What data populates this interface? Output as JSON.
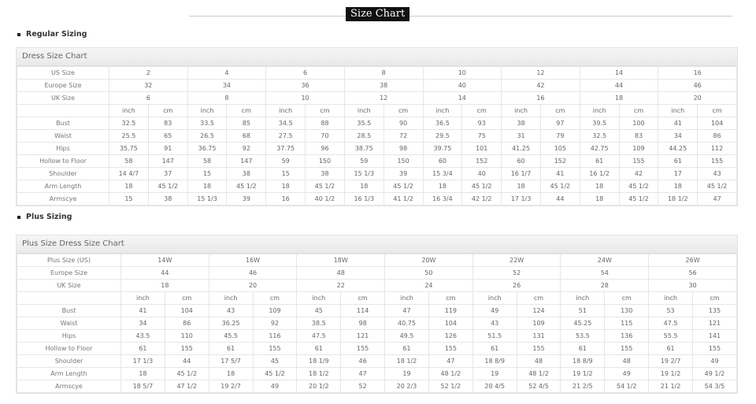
{
  "page_title": "Size Chart",
  "regular": {
    "section_label": "Regular Sizing",
    "table_title": "Dress Size Chart",
    "size_rows": [
      {
        "label": "US Size",
        "values": [
          "2",
          "4",
          "6",
          "8",
          "10",
          "12",
          "14",
          "16"
        ]
      },
      {
        "label": "Europe Size",
        "values": [
          "32",
          "34",
          "36",
          "38",
          "40",
          "42",
          "44",
          "46"
        ]
      },
      {
        "label": "UK Size",
        "values": [
          "6",
          "8",
          "10",
          "12",
          "14",
          "16",
          "18",
          "20"
        ]
      }
    ],
    "unit_labels": [
      "inch",
      "cm"
    ],
    "measure_rows": [
      {
        "label": "Bust",
        "values": [
          "32.5",
          "83",
          "33.5",
          "85",
          "34.5",
          "88",
          "35.5",
          "90",
          "36.5",
          "93",
          "38",
          "97",
          "39.5",
          "100",
          "41",
          "104"
        ]
      },
      {
        "label": "Waist",
        "values": [
          "25.5",
          "65",
          "26.5",
          "68",
          "27.5",
          "70",
          "28.5",
          "72",
          "29.5",
          "75",
          "31",
          "79",
          "32.5",
          "83",
          "34",
          "86"
        ]
      },
      {
        "label": "Hips",
        "values": [
          "35.75",
          "91",
          "36.75",
          "92",
          "37.75",
          "96",
          "38.75",
          "98",
          "39.75",
          "101",
          "41.25",
          "105",
          "42.75",
          "109",
          "44.25",
          "112"
        ]
      },
      {
        "label": "Hollow to Floor",
        "values": [
          "58",
          "147",
          "58",
          "147",
          "59",
          "150",
          "59",
          "150",
          "60",
          "152",
          "60",
          "152",
          "61",
          "155",
          "61",
          "155"
        ]
      },
      {
        "label": "Shoulder",
        "values": [
          "14 4/7",
          "37",
          "15",
          "38",
          "15",
          "38",
          "15 1/3",
          "39",
          "15 3/4",
          "40",
          "16 1/7",
          "41",
          "16 1/2",
          "42",
          "17",
          "43"
        ]
      },
      {
        "label": "Arm Length",
        "values": [
          "18",
          "45 1/2",
          "18",
          "45 1/2",
          "18",
          "45 1/2",
          "18",
          "45 1/2",
          "18",
          "45 1/2",
          "18",
          "45 1/2",
          "18",
          "45 1/2",
          "18",
          "45 1/2"
        ]
      },
      {
        "label": "Armscye",
        "values": [
          "15",
          "38",
          "15 1/3",
          "39",
          "16",
          "40 1/2",
          "16 1/3",
          "41 1/2",
          "16 3/4",
          "42 1/2",
          "17 1/3",
          "44",
          "18",
          "45 1/2",
          "18 1/2",
          "47"
        ]
      }
    ]
  },
  "plus": {
    "section_label": "Plus Sizing",
    "table_title": "Plus Size Dress Size Chart",
    "size_rows": [
      {
        "label": "Plus Size (US)",
        "values": [
          "14W",
          "16W",
          "18W",
          "20W",
          "22W",
          "24W",
          "26W"
        ]
      },
      {
        "label": "Europe Size",
        "values": [
          "44",
          "46",
          "48",
          "50",
          "52",
          "54",
          "56"
        ]
      },
      {
        "label": "UK Size",
        "values": [
          "18",
          "20",
          "22",
          "24",
          "26",
          "28",
          "30"
        ]
      }
    ],
    "unit_labels": [
      "inch",
      "cm"
    ],
    "measure_rows": [
      {
        "label": "Bust",
        "values": [
          "41",
          "104",
          "43",
          "109",
          "45",
          "114",
          "47",
          "119",
          "49",
          "124",
          "51",
          "130",
          "53",
          "135"
        ]
      },
      {
        "label": "Waist",
        "values": [
          "34",
          "86",
          "36.25",
          "92",
          "38.5",
          "98",
          "40.75",
          "104",
          "43",
          "109",
          "45.25",
          "115",
          "47.5",
          "121"
        ]
      },
      {
        "label": "Hips",
        "values": [
          "43.5",
          "110",
          "45.5",
          "116",
          "47.5",
          "121",
          "49.5",
          "126",
          "51.5",
          "131",
          "53.5",
          "136",
          "55.5",
          "141"
        ]
      },
      {
        "label": "Hollow to Floor",
        "values": [
          "61",
          "155",
          "61",
          "155",
          "61",
          "155",
          "61",
          "155",
          "61",
          "155",
          "61",
          "155",
          "61",
          "155"
        ]
      },
      {
        "label": "Shoulder",
        "values": [
          "17 1/3",
          "44",
          "17 5/7",
          "45",
          "18 1/9",
          "46",
          "18 1/2",
          "47",
          "18 8/9",
          "48",
          "18 8/9",
          "48",
          "19 2/7",
          "49"
        ]
      },
      {
        "label": "Arm Length",
        "values": [
          "18",
          "45 1/2",
          "18",
          "45 1/2",
          "18 1/2",
          "47",
          "19",
          "48 1/2",
          "19",
          "48 1/2",
          "19 1/2",
          "49",
          "19 1/2",
          "49 1/2"
        ]
      },
      {
        "label": "Armscye",
        "values": [
          "18 5/7",
          "47 1/2",
          "19 2/7",
          "49",
          "20 1/2",
          "52",
          "20 2/3",
          "52 1/2",
          "20 4/5",
          "52 4/5",
          "21 2/5",
          "54 1/2",
          "21 1/2",
          "54 3/5"
        ]
      }
    ]
  }
}
